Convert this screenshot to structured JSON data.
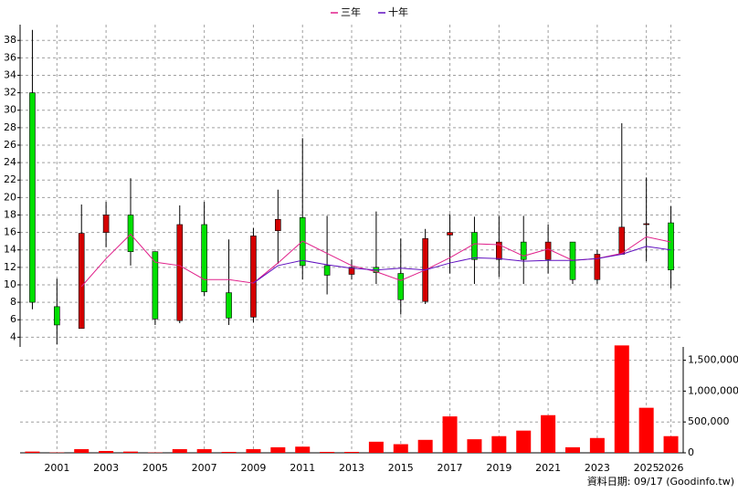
{
  "chart_data": [
    {
      "type": "candlestick",
      "categories": [
        null,
        "2001",
        null,
        "2003",
        null,
        "2005",
        null,
        "2007",
        null,
        "2009",
        null,
        "2011",
        null,
        "2013",
        null,
        "2015",
        null,
        "2017",
        null,
        "2019",
        null,
        "2021",
        null,
        "2023",
        null,
        "2025",
        "2026"
      ],
      "open": [
        32,
        7.5,
        5,
        16,
        18,
        13.8,
        5.9,
        16.9,
        9.1,
        6.3,
        16.2,
        17.7,
        12.2,
        11.2,
        12,
        11.3,
        8.1,
        15.7,
        16,
        12.9,
        14.9,
        12.9,
        14.9,
        10.6,
        13.5,
        16.9,
        17.1
      ],
      "high": [
        39.2,
        10.7,
        19.2,
        19.5,
        22.2,
        13.8,
        19.1,
        19.5,
        15.2,
        16.5,
        20.9,
        26.8,
        17.9,
        12.9,
        18.4,
        15.3,
        16.4,
        18.1,
        17.8,
        17.9,
        17.9,
        16.9,
        14.9,
        14,
        28.5,
        22.3,
        19
      ],
      "low": [
        7.2,
        3.2,
        5,
        14.3,
        12.2,
        5.4,
        5.6,
        8.7,
        5.4,
        5.7,
        12.4,
        10.6,
        8.9,
        10.6,
        10.1,
        6.6,
        7.8,
        11.3,
        10.1,
        10.9,
        10.1,
        11.3,
        10.1,
        10.1,
        13.5,
        12.7,
        9.6
      ],
      "close": [
        8,
        5.4,
        15.9,
        18,
        13.8,
        6.1,
        16.9,
        9.2,
        6.2,
        15.6,
        17.5,
        12.2,
        11.1,
        12,
        11.4,
        8.3,
        15.3,
        16,
        12.9,
        14.9,
        12.9,
        14.9,
        10.6,
        13.5,
        16.6,
        17,
        11.7
      ],
      "up_color": "#d40000",
      "down_color": "#00e000",
      "series": [
        {
          "name": "三年",
          "color": "#e0208a",
          "values": [
            null,
            null,
            9.8,
            13,
            15.8,
            12.6,
            12.2,
            10.6,
            10.6,
            10.2,
            12.5,
            15,
            13.6,
            12.2,
            11.5,
            10.5,
            11.7,
            13.1,
            14.7,
            14.6,
            13.3,
            14.1,
            12.8,
            13,
            13.6,
            15.5,
            14.9
          ]
        },
        {
          "name": "十年",
          "color": "#6010c0",
          "values": [
            null,
            null,
            null,
            null,
            null,
            null,
            null,
            null,
            null,
            10.2,
            12.2,
            12.8,
            12.3,
            11.9,
            11.7,
            11.9,
            11.7,
            12.5,
            13.1,
            13,
            12.7,
            12.8,
            12.8,
            13,
            13.5,
            14.4,
            14
          ]
        }
      ],
      "ylim": [
        3.2,
        39.8
      ],
      "yticks": [
        4,
        6,
        8,
        10,
        12,
        14,
        16,
        18,
        20,
        22,
        24,
        26,
        28,
        30,
        32,
        34,
        36,
        38
      ],
      "grid": true,
      "legend": "top"
    },
    {
      "type": "bar",
      "color": "#ff0000",
      "values": [
        20000,
        5000,
        60000,
        30000,
        20000,
        5000,
        60000,
        60000,
        15000,
        60000,
        90000,
        100000,
        15000,
        15000,
        180000,
        140000,
        210000,
        590000,
        220000,
        270000,
        360000,
        610000,
        90000,
        240000,
        1740000,
        730000,
        270000
      ],
      "ylim": [
        0,
        1760000
      ],
      "yticks": [
        0,
        {
          "value": 500000,
          "label": "500,000"
        },
        {
          "value": 1000000,
          "label": "1,000,000"
        },
        {
          "value": 1500000,
          "label": "1,500,000"
        }
      ],
      "grid": true
    }
  ],
  "footer": "資料日期: 09/17  (Goodinfo.tw)"
}
